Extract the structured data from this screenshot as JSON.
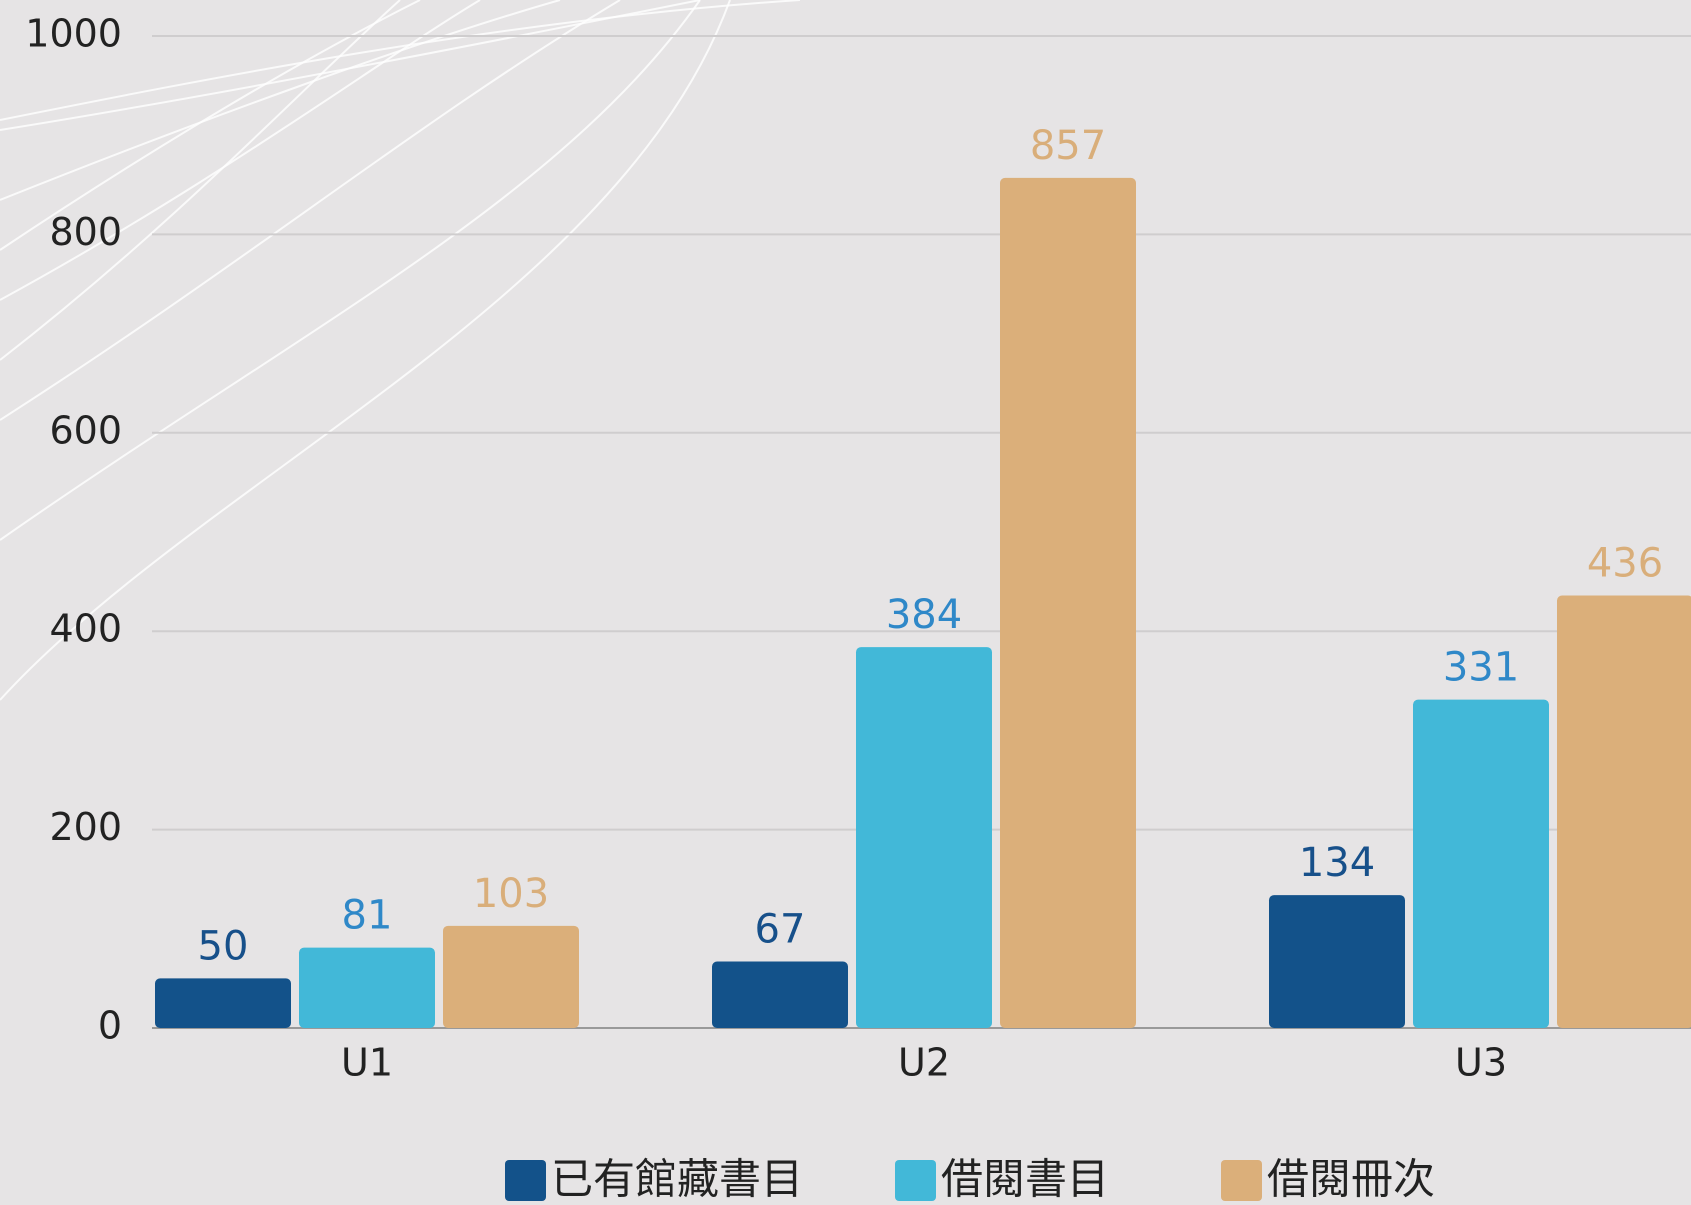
{
  "chart_data": {
    "type": "bar",
    "categories": [
      "U1",
      "U2",
      "U3"
    ],
    "series": [
      {
        "name": "已有館藏書目",
        "color": "#13528a",
        "values": [
          50,
          67,
          134
        ]
      },
      {
        "name": "借閱書目",
        "color": "#42b8d8",
        "values": [
          81,
          384,
          331
        ]
      },
      {
        "name": "借閱冊次",
        "color": "#dbaf7a",
        "values": [
          103,
          857,
          436
        ]
      }
    ],
    "ylim": [
      0,
      1000
    ],
    "yticks": [
      0,
      200,
      400,
      600,
      800,
      1000
    ],
    "grid": true,
    "legend": "bottom"
  }
}
